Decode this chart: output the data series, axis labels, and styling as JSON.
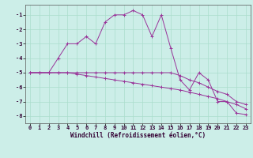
{
  "xlabel": "Windchill (Refroidissement éolien,°C)",
  "bg_color": "#cceee8",
  "line_color": "#993399",
  "grid_color": "#aaddcc",
  "x_values": [
    0,
    1,
    2,
    3,
    4,
    5,
    6,
    7,
    8,
    9,
    10,
    11,
    12,
    13,
    14,
    15,
    16,
    17,
    18,
    19,
    20,
    21,
    22,
    23
  ],
  "series1": [
    -5.0,
    -5.0,
    -5.0,
    -4.0,
    -3.0,
    -3.0,
    -2.5,
    -3.0,
    -1.5,
    -1.0,
    -1.0,
    -0.7,
    -1.0,
    -2.5,
    -1.0,
    -3.3,
    -5.5,
    -6.2,
    -5.0,
    -5.5,
    -7.0,
    -7.0,
    -7.8,
    -7.9
  ],
  "series2": [
    -5.0,
    -5.0,
    -5.0,
    -5.0,
    -5.0,
    -5.0,
    -5.0,
    -5.0,
    -5.0,
    -5.0,
    -5.0,
    -5.0,
    -5.0,
    -5.0,
    -5.0,
    -5.0,
    -5.2,
    -5.5,
    -5.7,
    -6.0,
    -6.3,
    -6.5,
    -7.0,
    -7.2
  ],
  "series3": [
    -5.0,
    -5.0,
    -5.0,
    -5.0,
    -5.0,
    -5.1,
    -5.2,
    -5.3,
    -5.4,
    -5.5,
    -5.6,
    -5.7,
    -5.8,
    -5.9,
    -6.0,
    -6.1,
    -6.2,
    -6.35,
    -6.5,
    -6.65,
    -6.8,
    -7.0,
    -7.2,
    -7.5
  ],
  "ylim": [
    -8.5,
    -0.3
  ],
  "xlim": [
    -0.5,
    23.5
  ],
  "yticks": [
    -8,
    -7,
    -6,
    -5,
    -4,
    -3,
    -2,
    -1
  ],
  "xticks": [
    0,
    1,
    2,
    3,
    4,
    5,
    6,
    7,
    8,
    9,
    10,
    11,
    12,
    13,
    14,
    15,
    16,
    17,
    18,
    19,
    20,
    21,
    22,
    23
  ],
  "tick_fontsize": 5.0,
  "xlabel_fontsize": 5.5
}
